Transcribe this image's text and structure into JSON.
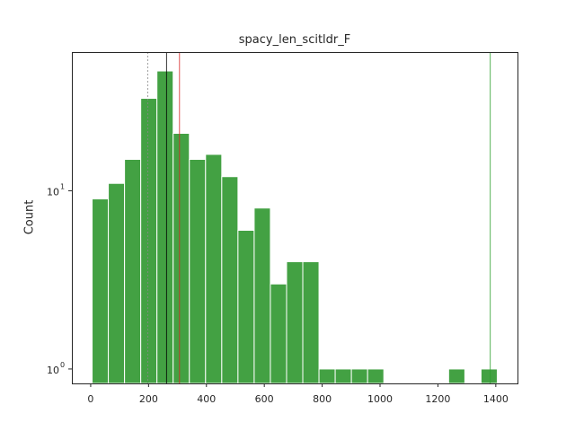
{
  "chart_data": {
    "type": "bar",
    "title": "spacy_len_scitldr_F",
    "xlabel": "",
    "ylabel": "Count",
    "yscale": "log",
    "xlim": [
      -65,
      1475
    ],
    "ylim": [
      0.83,
      60
    ],
    "x_ticks": [
      0,
      200,
      400,
      600,
      800,
      1000,
      1200,
      1400
    ],
    "y_ticks": [
      {
        "value": 1,
        "label": "10",
        "exp": "0"
      },
      {
        "value": 10,
        "label": "10",
        "exp": "1"
      }
    ],
    "bin_width": 56,
    "bars": [
      {
        "x0": 5,
        "value": 9
      },
      {
        "x0": 61,
        "value": 11
      },
      {
        "x0": 117,
        "value": 15
      },
      {
        "x0": 173,
        "value": 33
      },
      {
        "x0": 229,
        "value": 47
      },
      {
        "x0": 285,
        "value": 21
      },
      {
        "x0": 341,
        "value": 15
      },
      {
        "x0": 397,
        "value": 16
      },
      {
        "x0": 453,
        "value": 12
      },
      {
        "x0": 509,
        "value": 6
      },
      {
        "x0": 565,
        "value": 8
      },
      {
        "x0": 621,
        "value": 3
      },
      {
        "x0": 677,
        "value": 4
      },
      {
        "x0": 733,
        "value": 4
      },
      {
        "x0": 789,
        "value": 1
      },
      {
        "x0": 845,
        "value": 1
      },
      {
        "x0": 901,
        "value": 1
      },
      {
        "x0": 957,
        "value": 1
      },
      {
        "x0": 1237,
        "value": 1
      },
      {
        "x0": 1349,
        "value": 1
      }
    ],
    "vlines": [
      {
        "x": 197,
        "color": "#888888",
        "style": "dotted",
        "stroke": 0.8
      },
      {
        "x": 262,
        "color": "#000000",
        "style": "solid",
        "stroke": 0.8
      },
      {
        "x": 307,
        "color": "#d62728",
        "style": "solid",
        "stroke": 0.8
      },
      {
        "x": 1381,
        "color": "#2ca02c",
        "style": "solid",
        "stroke": 0.8
      }
    ],
    "bar_color": "#43a143",
    "grid": false
  }
}
